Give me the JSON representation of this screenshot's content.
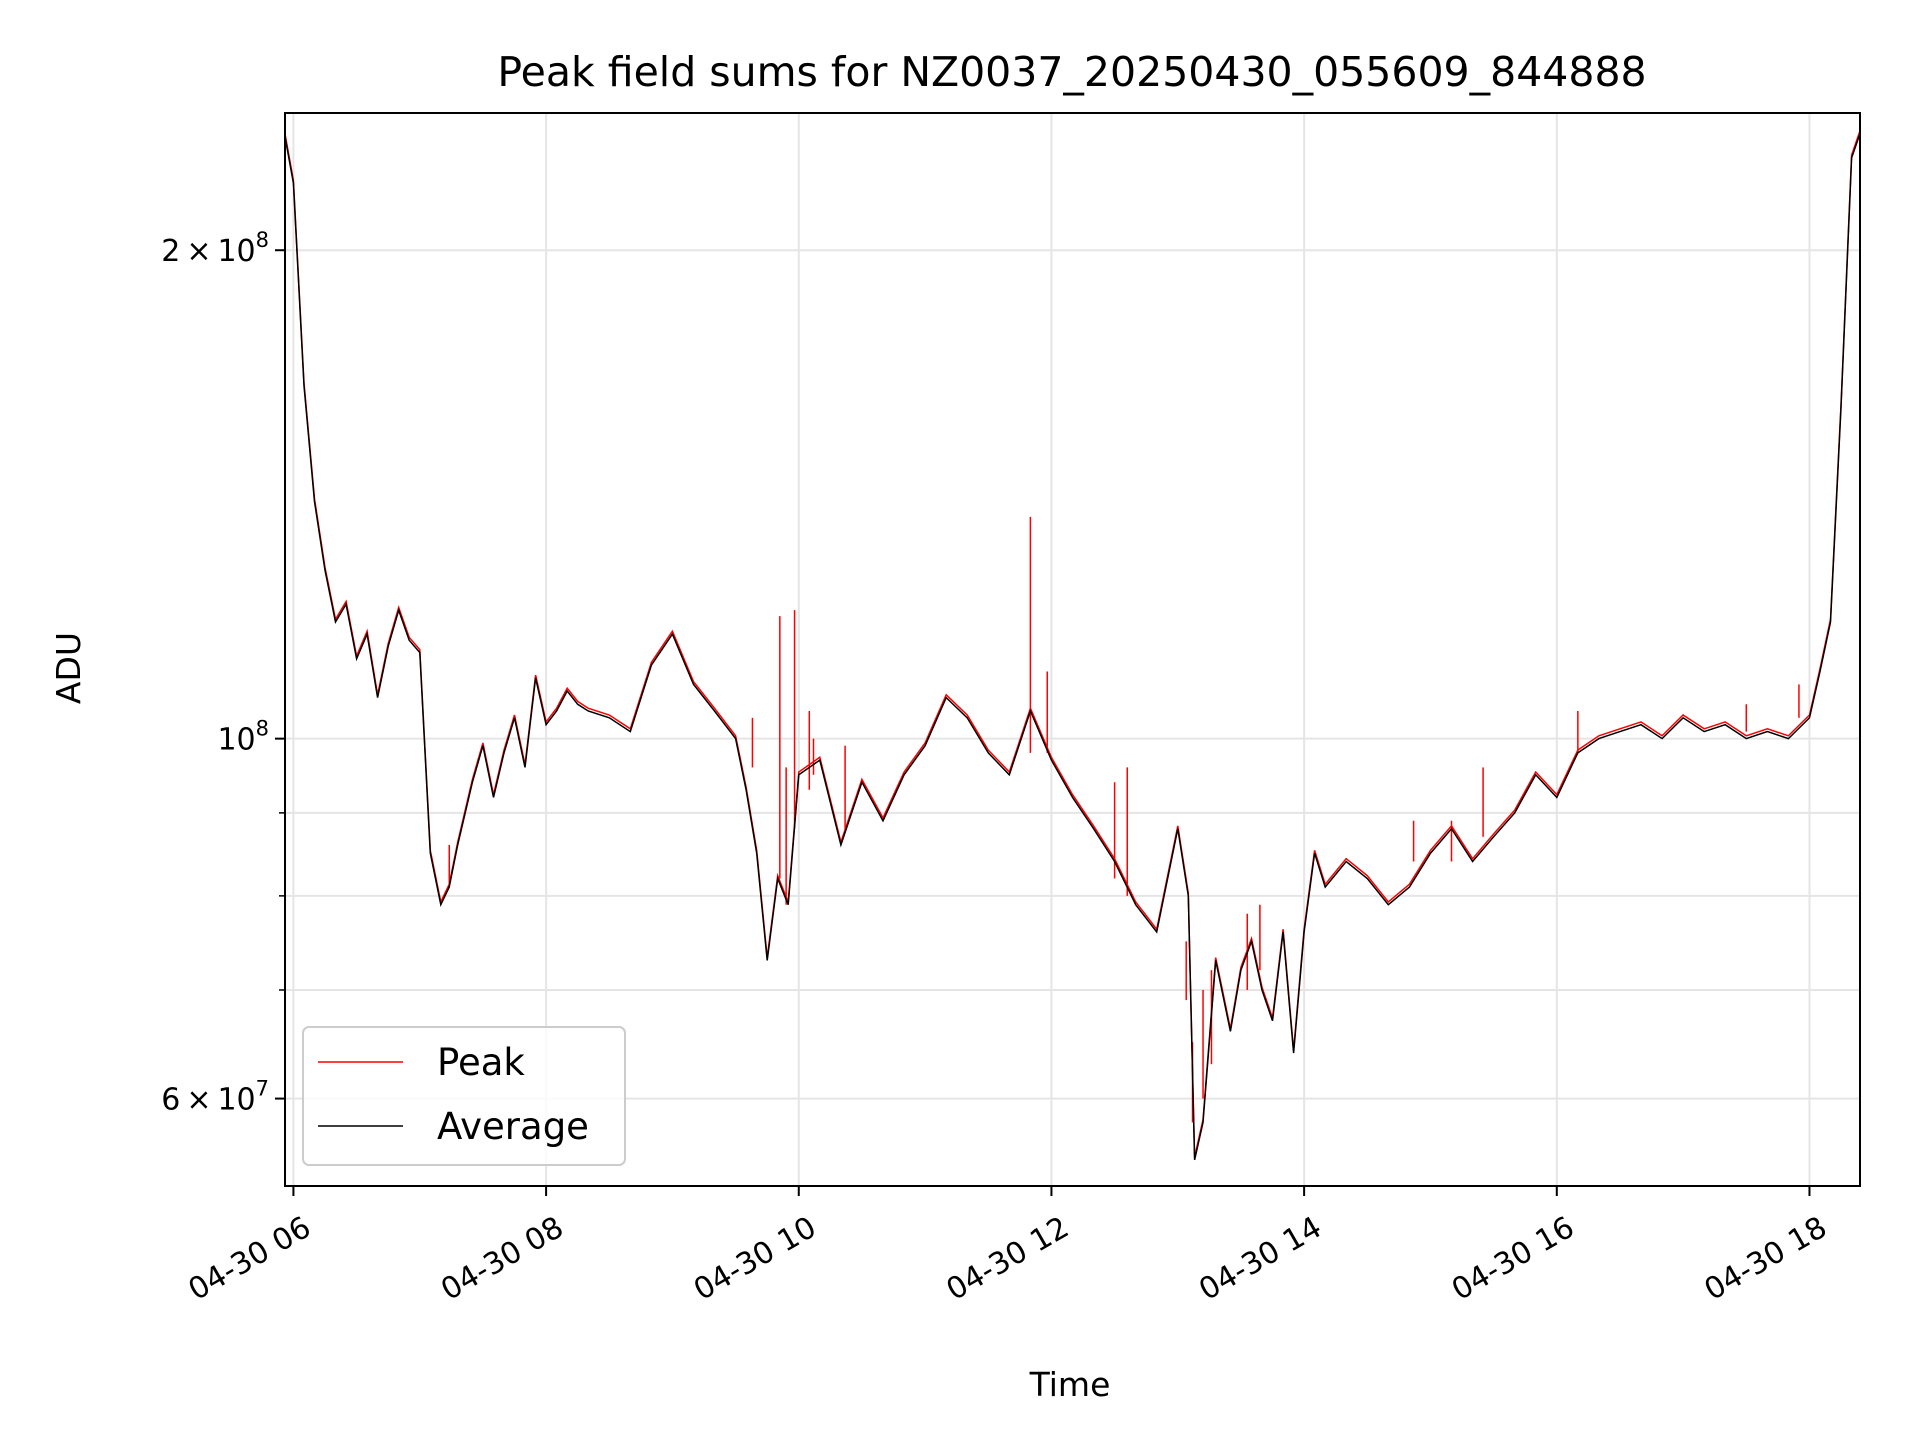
{
  "chart_data": {
    "type": "line",
    "title": "Peak field sums for NZ0037_20250430_055609_844888",
    "xlabel": "Time",
    "ylabel": "ADU",
    "y_scale": "log",
    "ylim": [
      53000000,
      243000000
    ],
    "xlim": [
      "2025-04-30 05:56",
      "2025-04-30 18:24"
    ],
    "x_ticks": [
      "04-30 06",
      "04-30 08",
      "04-30 10",
      "04-30 12",
      "04-30 14",
      "04-30 16",
      "04-30 18"
    ],
    "x_tick_times": [
      "2025-04-30 06:00",
      "2025-04-30 08:00",
      "2025-04-30 10:00",
      "2025-04-30 12:00",
      "2025-04-30 14:00",
      "2025-04-30 16:00",
      "2025-04-30 18:00"
    ],
    "y_major_ticks": [
      {
        "value": 60000000,
        "mantissa": "6",
        "base": "10",
        "exp": "7"
      },
      {
        "value": 100000000,
        "mantissa": "",
        "base": "10",
        "exp": "8"
      },
      {
        "value": 200000000,
        "mantissa": "2",
        "base": "10",
        "exp": "8"
      }
    ],
    "y_minor_ticks": [
      70000000,
      80000000,
      90000000
    ],
    "grid": true,
    "legend_position": "lower-left",
    "series": [
      {
        "name": "Average",
        "color": "#000000",
        "x": [
          "2025-04-30 05:56",
          "2025-04-30 06:00",
          "2025-04-30 06:05",
          "2025-04-30 06:10",
          "2025-04-30 06:15",
          "2025-04-30 06:20",
          "2025-04-30 06:25",
          "2025-04-30 06:30",
          "2025-04-30 06:35",
          "2025-04-30 06:40",
          "2025-04-30 06:45",
          "2025-04-30 06:50",
          "2025-04-30 06:55",
          "2025-04-30 07:00",
          "2025-04-30 07:05",
          "2025-04-30 07:10",
          "2025-04-30 07:14",
          "2025-04-30 07:18",
          "2025-04-30 07:25",
          "2025-04-30 07:30",
          "2025-04-30 07:35",
          "2025-04-30 07:40",
          "2025-04-30 07:45",
          "2025-04-30 07:50",
          "2025-04-30 07:55",
          "2025-04-30 08:00",
          "2025-04-30 08:05",
          "2025-04-30 08:10",
          "2025-04-30 08:15",
          "2025-04-30 08:20",
          "2025-04-30 08:30",
          "2025-04-30 08:40",
          "2025-04-30 08:50",
          "2025-04-30 09:00",
          "2025-04-30 09:10",
          "2025-04-30 09:20",
          "2025-04-30 09:30",
          "2025-04-30 09:35",
          "2025-04-30 09:40",
          "2025-04-30 09:45",
          "2025-04-30 09:50",
          "2025-04-30 09:55",
          "2025-04-30 10:00",
          "2025-04-30 10:10",
          "2025-04-30 10:20",
          "2025-04-30 10:30",
          "2025-04-30 10:40",
          "2025-04-30 10:50",
          "2025-04-30 11:00",
          "2025-04-30 11:10",
          "2025-04-30 11:20",
          "2025-04-30 11:30",
          "2025-04-30 11:40",
          "2025-04-30 11:50",
          "2025-04-30 12:00",
          "2025-04-30 12:10",
          "2025-04-30 12:20",
          "2025-04-30 12:30",
          "2025-04-30 12:40",
          "2025-04-30 12:50",
          "2025-04-30 13:00",
          "2025-04-30 13:05",
          "2025-04-30 13:08",
          "2025-04-30 13:12",
          "2025-04-30 13:18",
          "2025-04-30 13:25",
          "2025-04-30 13:30",
          "2025-04-30 13:35",
          "2025-04-30 13:40",
          "2025-04-30 13:45",
          "2025-04-30 13:50",
          "2025-04-30 13:55",
          "2025-04-30 14:00",
          "2025-04-30 14:05",
          "2025-04-30 14:10",
          "2025-04-30 14:20",
          "2025-04-30 14:30",
          "2025-04-30 14:40",
          "2025-04-30 14:50",
          "2025-04-30 15:00",
          "2025-04-30 15:10",
          "2025-04-30 15:20",
          "2025-04-30 15:30",
          "2025-04-30 15:40",
          "2025-04-30 15:50",
          "2025-04-30 16:00",
          "2025-04-30 16:10",
          "2025-04-30 16:20",
          "2025-04-30 16:30",
          "2025-04-30 16:40",
          "2025-04-30 16:50",
          "2025-04-30 17:00",
          "2025-04-30 17:10",
          "2025-04-30 17:20",
          "2025-04-30 17:30",
          "2025-04-30 17:40",
          "2025-04-30 17:50",
          "2025-04-30 18:00",
          "2025-04-30 18:05",
          "2025-04-30 18:10",
          "2025-04-30 18:15",
          "2025-04-30 18:20",
          "2025-04-30 18:24"
        ],
        "values": [
          235000000,
          220000000,
          165000000,
          140000000,
          127000000,
          118000000,
          121000000,
          112000000,
          116000000,
          106000000,
          114000000,
          120000000,
          115000000,
          113000000,
          85000000,
          79000000,
          81000000,
          86000000,
          94000000,
          99000000,
          92000000,
          98000000,
          103000000,
          96000000,
          109000000,
          102000000,
          104000000,
          107000000,
          105000000,
          104000000,
          103000000,
          101000000,
          111000000,
          116000000,
          108000000,
          104000000,
          100000000,
          93000000,
          85000000,
          73000000,
          82000000,
          79000000,
          95000000,
          97000000,
          86000000,
          94000000,
          89000000,
          95000000,
          99000000,
          106000000,
          103000000,
          98000000,
          95000000,
          104000000,
          97000000,
          92000000,
          88000000,
          84000000,
          79000000,
          76000000,
          88000000,
          80000000,
          55000000,
          58000000,
          73000000,
          66000000,
          72000000,
          75000000,
          70000000,
          67000000,
          76000000,
          64000000,
          76000000,
          85000000,
          81000000,
          84000000,
          82000000,
          79000000,
          81000000,
          85000000,
          88000000,
          84000000,
          87000000,
          90000000,
          95000000,
          92000000,
          98000000,
          100000000,
          101000000,
          102000000,
          100000000,
          103000000,
          101000000,
          102000000,
          100000000,
          101000000,
          100000000,
          103000000,
          110000000,
          118000000,
          160000000,
          228000000,
          236000000
        ]
      },
      {
        "name": "Peak",
        "color": "#ff0000",
        "spikes": [
          {
            "x": "2025-04-30 07:14",
            "base": 81000000,
            "peak": 86000000
          },
          {
            "x": "2025-04-30 09:38",
            "base": 96000000,
            "peak": 103000000
          },
          {
            "x": "2025-04-30 09:51",
            "base": 82000000,
            "peak": 119000000
          },
          {
            "x": "2025-04-30 09:54",
            "base": 79000000,
            "peak": 96000000
          },
          {
            "x": "2025-04-30 09:58",
            "base": 88000000,
            "peak": 120000000
          },
          {
            "x": "2025-04-30 10:05",
            "base": 93000000,
            "peak": 104000000
          },
          {
            "x": "2025-04-30 10:07",
            "base": 95000000,
            "peak": 100000000
          },
          {
            "x": "2025-04-30 10:22",
            "base": 88000000,
            "peak": 99000000
          },
          {
            "x": "2025-04-30 11:50",
            "base": 98000000,
            "peak": 137000000
          },
          {
            "x": "2025-04-30 11:58",
            "base": 98000000,
            "peak": 110000000
          },
          {
            "x": "2025-04-30 12:30",
            "base": 82000000,
            "peak": 94000000
          },
          {
            "x": "2025-04-30 12:36",
            "base": 80000000,
            "peak": 96000000
          },
          {
            "x": "2025-04-30 13:04",
            "base": 69000000,
            "peak": 75000000
          },
          {
            "x": "2025-04-30 13:07",
            "base": 58000000,
            "peak": 65000000
          },
          {
            "x": "2025-04-30 13:12",
            "base": 60000000,
            "peak": 70000000
          },
          {
            "x": "2025-04-30 13:16",
            "base": 63000000,
            "peak": 72000000
          },
          {
            "x": "2025-04-30 13:33",
            "base": 70000000,
            "peak": 78000000
          },
          {
            "x": "2025-04-30 13:39",
            "base": 72000000,
            "peak": 79000000
          },
          {
            "x": "2025-04-30 14:52",
            "base": 84000000,
            "peak": 89000000
          },
          {
            "x": "2025-04-30 15:10",
            "base": 84000000,
            "peak": 89000000
          },
          {
            "x": "2025-04-30 15:25",
            "base": 87000000,
            "peak": 96000000
          },
          {
            "x": "2025-04-30 16:10",
            "base": 98000000,
            "peak": 104000000
          },
          {
            "x": "2025-04-30 17:30",
            "base": 101000000,
            "peak": 105000000
          },
          {
            "x": "2025-04-30 17:55",
            "base": 103000000,
            "peak": 108000000
          }
        ]
      }
    ]
  },
  "colors": {
    "grid": "#e5e5e5",
    "frame": "#000000"
  }
}
